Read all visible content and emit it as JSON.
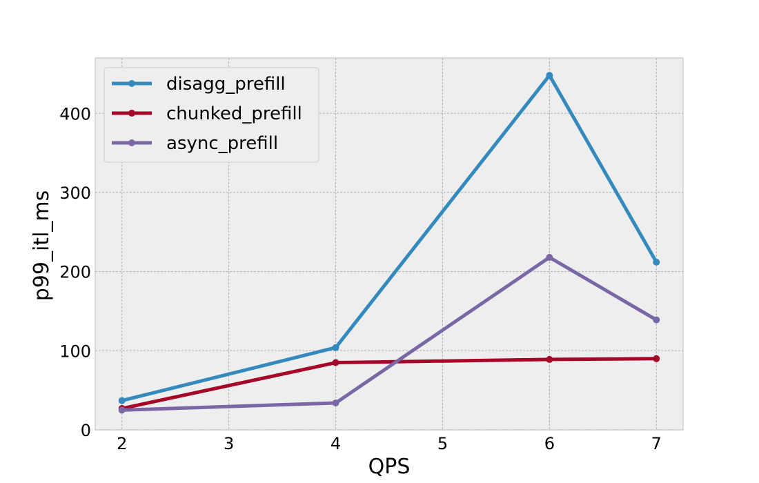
{
  "chart_data": {
    "type": "line",
    "xlabel": "QPS",
    "ylabel": "p99_itl_ms",
    "xlim": [
      1.75,
      7.25
    ],
    "ylim": [
      0,
      470
    ],
    "xticks": [
      2,
      3,
      4,
      5,
      6,
      7
    ],
    "yticks": [
      0,
      100,
      200,
      300,
      400
    ],
    "grid": true,
    "legend_position": "top-left",
    "series": [
      {
        "name": "disagg_prefill",
        "color": "#348abd",
        "x": [
          2,
          4,
          6,
          7
        ],
        "y": [
          37,
          104,
          448,
          212
        ]
      },
      {
        "name": "chunked_prefill",
        "color": "#a60628",
        "x": [
          2,
          4,
          6,
          7
        ],
        "y": [
          27,
          85,
          89,
          90
        ]
      },
      {
        "name": "async_prefill",
        "color": "#7a68a6",
        "x": [
          2,
          4,
          6,
          7
        ],
        "y": [
          25,
          34,
          218,
          139
        ]
      }
    ]
  }
}
